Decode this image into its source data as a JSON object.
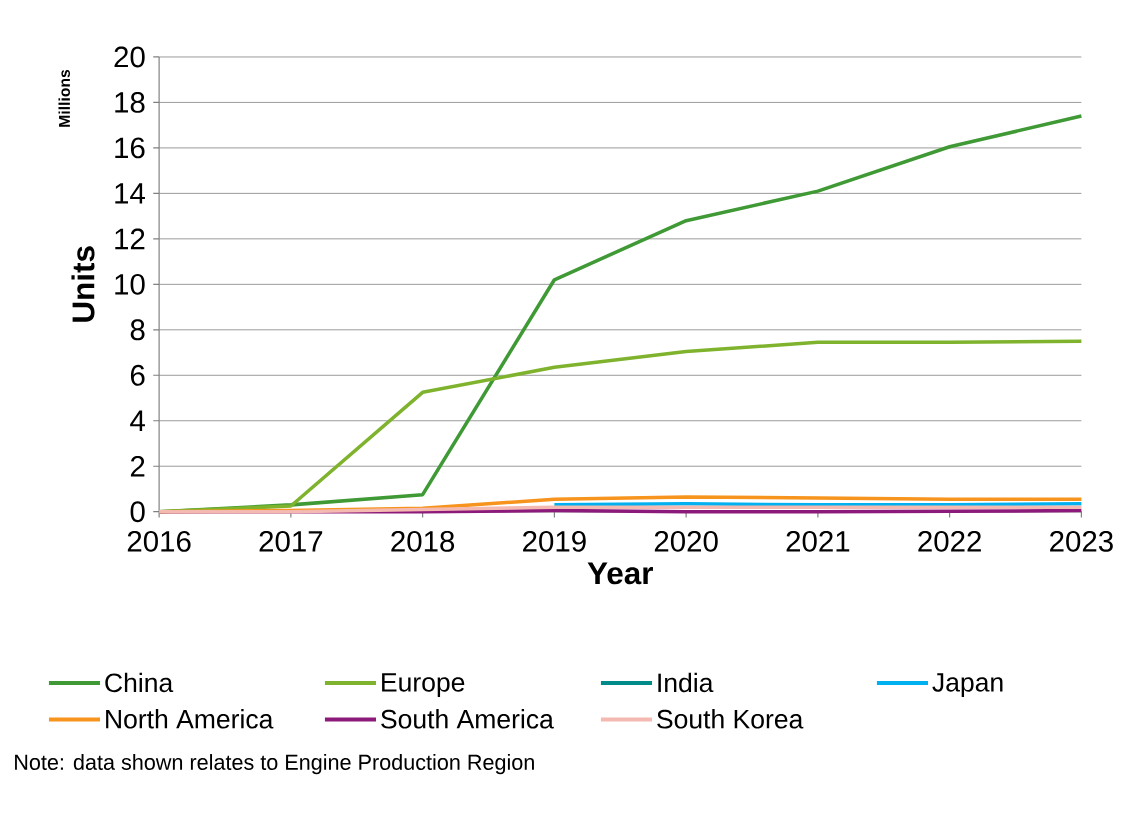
{
  "chart_data": {
    "type": "line",
    "xlabel": "Year",
    "ylabel": "Units",
    "annotations": [
      "Millions",
      "Note: data shown relates to Engine Production Region"
    ],
    "x": [
      2016,
      2017,
      2018,
      2019,
      2020,
      2021,
      2022,
      2023
    ],
    "xlim": [
      2016,
      2023
    ],
    "xticks": [
      2016,
      2017,
      2018,
      2019,
      2020,
      2021,
      2022,
      2023
    ],
    "ylim": [
      0,
      20
    ],
    "yticks": [
      0,
      2,
      4,
      6,
      8,
      10,
      12,
      14,
      16,
      18,
      20
    ],
    "grid": "y",
    "legend": "bottom",
    "marker": "none",
    "line_style": "solid",
    "series": [
      {
        "name": "China",
        "color": "#3f9a35",
        "values": [
          0,
          0.3,
          0.75,
          10.2,
          12.8,
          14.1,
          16.05,
          17.4
        ]
      },
      {
        "name": "Europe",
        "color": "#7fb32e",
        "values": [
          0,
          0.25,
          5.25,
          6.35,
          7.05,
          7.45,
          7.45,
          7.5
        ]
      },
      {
        "name": "India",
        "color": "#008b8b",
        "values": [
          null,
          null,
          null,
          null,
          null,
          null,
          null,
          null
        ]
      },
      {
        "name": "Japan",
        "color": "#00b0f0",
        "values": [
          null,
          null,
          null,
          0.3,
          0.35,
          0.3,
          0.3,
          0.35
        ]
      },
      {
        "name": "North America",
        "color": "#f7941d",
        "values": [
          0,
          0.05,
          0.15,
          0.55,
          0.65,
          0.6,
          0.55,
          0.55
        ]
      },
      {
        "name": "South America",
        "color": "#8b1a7a",
        "values": [
          0,
          0,
          0,
          0.05,
          0,
          0,
          0.02,
          0.05
        ]
      },
      {
        "name": "South Korea",
        "color": "#f4b9b0",
        "values": [
          0,
          0,
          0.1,
          0.2,
          0.2,
          0.2,
          0.2,
          0.2
        ]
      }
    ]
  }
}
